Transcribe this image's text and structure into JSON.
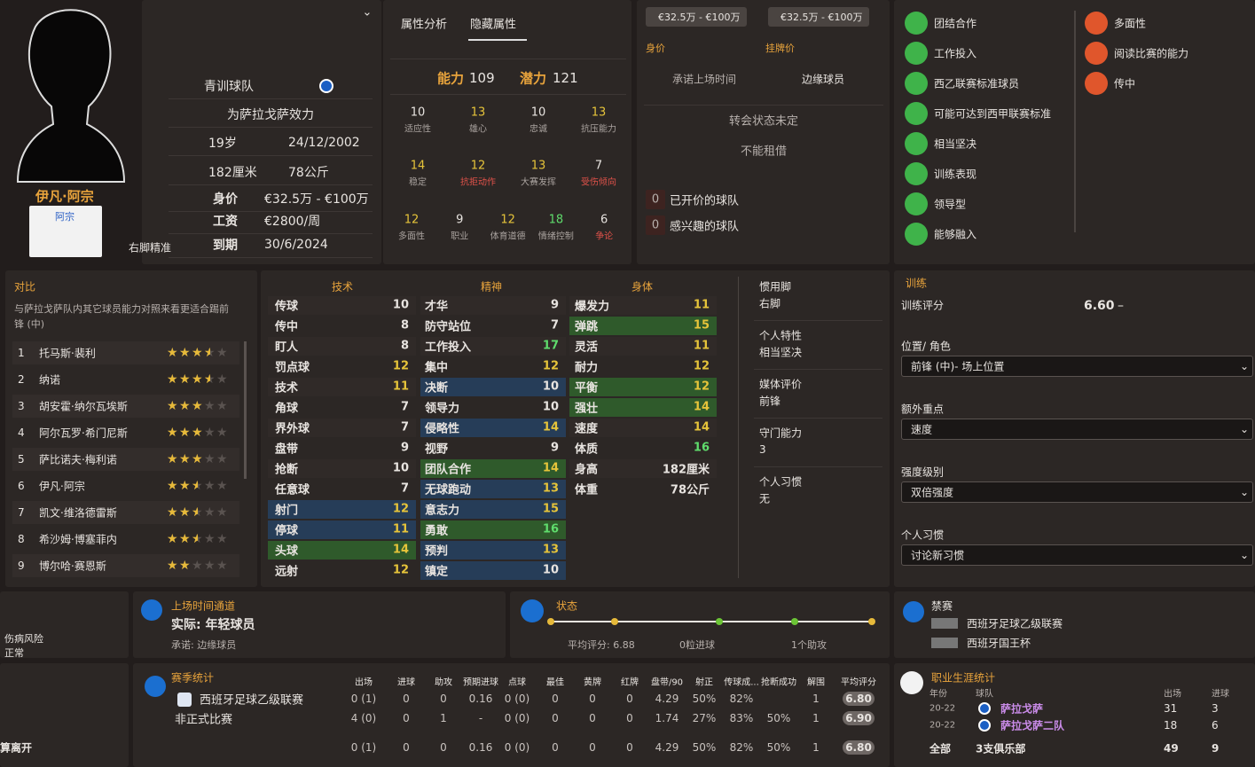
{
  "profile": {
    "name": "伊凡·阿宗",
    "shirt_name": "阿宗",
    "preferred_foot": "右脚精准",
    "rows": [
      [
        "青训球队"
      ],
      [
        "为萨拉戈萨效力"
      ],
      [
        "19岁",
        "24/12/2002"
      ],
      [
        "182厘米",
        "78公斤"
      ],
      [
        "身价",
        "€32.5万 - €100万"
      ],
      [
        "工资",
        "€2800/周"
      ],
      [
        "到期",
        "30/6/2024"
      ]
    ]
  },
  "hidden": {
    "tabs": [
      "属性分析",
      "隐藏属性"
    ],
    "ability": {
      "label": "能力",
      "value": 109
    },
    "potential": {
      "label": "潜力",
      "value": 121
    },
    "attributes": [
      {
        "label": "适应性",
        "value": 10
      },
      {
        "label": "雄心",
        "value": 13
      },
      {
        "label": "忠诚",
        "value": 10
      },
      {
        "label": "抗压能力",
        "value": 13
      },
      {
        "label": "稳定",
        "value": 14
      },
      {
        "label": "抗拒动作",
        "value": 12,
        "color": "#e0524a"
      },
      {
        "label": "大赛发挥",
        "value": 13
      },
      {
        "label": "受伤倾向",
        "value": 7,
        "color": "#e0524a"
      },
      {
        "label": "多面性",
        "value": 12
      },
      {
        "label": "职业",
        "value": 9
      },
      {
        "label": "体育道德",
        "value": 12
      },
      {
        "label": "情绪控制",
        "value": 18
      },
      {
        "label": "争论",
        "value": 6,
        "color": "#e0524a"
      }
    ]
  },
  "transfer": {
    "chips": [
      "€32.5万 - €100万",
      "€32.5万 - €100万"
    ],
    "value_label": "身价",
    "asking_label": "挂牌价",
    "playing_time_label": "承诺上场时间",
    "playing_time": "边缘球员",
    "status": "转会状态未定",
    "loan": "不能租借",
    "offers": {
      "count": 0,
      "label": "已开价的球队"
    },
    "interested": {
      "count": 0,
      "label": "感兴趣的球队"
    }
  },
  "traits": {
    "items": [
      {
        "label": "团结合作",
        "color": "#3fb34a"
      },
      {
        "label": "工作投入",
        "color": "#3fb34a"
      },
      {
        "label": "西乙联赛标准球员",
        "color": "#3fb34a"
      },
      {
        "label": "可能可达到西甲联赛标准",
        "color": "#3fb34a"
      },
      {
        "label": "相当坚决",
        "color": "#3fb34a"
      },
      {
        "label": "训练表现",
        "color": "#3fb34a"
      },
      {
        "label": "领导型",
        "color": "#3fb34a"
      },
      {
        "label": "能够融入",
        "color": "#3fb34a"
      },
      {
        "label": "多面性",
        "color": "#e0562c"
      },
      {
        "label": "阅读比赛的能力",
        "color": "#e0562c"
      },
      {
        "label": "传中",
        "color": "#e0562c"
      }
    ]
  },
  "comparison": {
    "title": "对比",
    "description": "与萨拉戈萨队内其它球员能力对照来看更适合踢前锋 (中)",
    "players": [
      {
        "rank": 1,
        "name": "托马斯·裴利",
        "rating": 3.5
      },
      {
        "rank": 2,
        "name": "纳诺",
        "rating": 3.5
      },
      {
        "rank": 3,
        "name": "胡安霍·纳尔瓦埃斯",
        "rating": 3
      },
      {
        "rank": 4,
        "name": "阿尔瓦罗·希门尼斯",
        "rating": 3
      },
      {
        "rank": 5,
        "name": "萨比诺夫·梅利诺",
        "rating": 3
      },
      {
        "rank": 6,
        "name": "伊凡·阿宗",
        "rating": 2.5
      },
      {
        "rank": 7,
        "name": "凯文·维洛德雷斯",
        "rating": 2.5
      },
      {
        "rank": 8,
        "name": "希沙姆·博塞菲内",
        "rating": 2.5
      },
      {
        "rank": 9,
        "name": "博尔哈·赛恩斯",
        "rating": 2
      }
    ]
  },
  "attributes": {
    "groups": [
      {
        "title": "技术",
        "items": [
          {
            "label": "传球",
            "value": 10
          },
          {
            "label": "传中",
            "value": 8
          },
          {
            "label": "盯人",
            "value": 8
          },
          {
            "label": "罚点球",
            "value": 12
          },
          {
            "label": "技术",
            "value": 11
          },
          {
            "label": "角球",
            "value": 7
          },
          {
            "label": "界外球",
            "value": 7
          },
          {
            "label": "盘带",
            "value": 9
          },
          {
            "label": "抢断",
            "value": 10
          },
          {
            "label": "任意球",
            "value": 7
          },
          {
            "label": "射门",
            "value": 12,
            "highlight": "#263d58"
          },
          {
            "label": "停球",
            "value": 11,
            "highlight": "#263d58"
          },
          {
            "label": "头球",
            "value": 14,
            "highlight": "#2f5a2b"
          },
          {
            "label": "远射",
            "value": 12
          }
        ]
      },
      {
        "title": "精神",
        "items": [
          {
            "label": "才华",
            "value": 9
          },
          {
            "label": "防守站位",
            "value": 7
          },
          {
            "label": "工作投入",
            "value": 17
          },
          {
            "label": "集中",
            "value": 12
          },
          {
            "label": "决断",
            "value": 10,
            "highlight": "#263d58"
          },
          {
            "label": "领导力",
            "value": 10
          },
          {
            "label": "侵略性",
            "value": 14,
            "highlight": "#263d58"
          },
          {
            "label": "视野",
            "value": 9
          },
          {
            "label": "团队合作",
            "value": 14,
            "highlight": "#2f5a2b"
          },
          {
            "label": "无球跑动",
            "value": 13,
            "highlight": "#263d58"
          },
          {
            "label": "意志力",
            "value": 15,
            "highlight": "#263d58"
          },
          {
            "label": "勇敢",
            "value": 16,
            "highlight": "#2f5a2b"
          },
          {
            "label": "预判",
            "value": 13,
            "highlight": "#263d58"
          },
          {
            "label": "镇定",
            "value": 10,
            "highlight": "#263d58"
          }
        ]
      },
      {
        "title": "身体",
        "items": [
          {
            "label": "爆发力",
            "value": 11
          },
          {
            "label": "弹跳",
            "value": 15,
            "highlight": "#2f5a2b"
          },
          {
            "label": "灵活",
            "value": 11
          },
          {
            "label": "耐力",
            "value": 12
          },
          {
            "label": "平衡",
            "value": 12,
            "highlight": "#2f5a2b"
          },
          {
            "label": "强壮",
            "value": 14,
            "highlight": "#2f5a2b"
          },
          {
            "label": "速度",
            "value": 14
          },
          {
            "label": "体质",
            "value": 16
          },
          {
            "label": "身高",
            "value": "182厘米"
          },
          {
            "label": "体重",
            "value": "78公斤"
          }
        ]
      }
    ],
    "side": [
      {
        "label": "惯用脚",
        "value": "右脚"
      },
      {
        "label": "个人特性",
        "value": "相当坚决"
      },
      {
        "label": "媒体评价",
        "value": "前锋"
      },
      {
        "label": "守门能力",
        "value": 3
      },
      {
        "label": "个人习惯",
        "value": "无"
      }
    ]
  },
  "training": {
    "title": "训练",
    "rating_label": "训练评分",
    "rating": "6.60",
    "rating_trend": "–",
    "dropdowns": [
      {
        "label": "位置/ 角色",
        "value": "前锋 (中)- 场上位置"
      },
      {
        "label": "额外重点",
        "value": "速度"
      },
      {
        "label": "强度级别",
        "value": "双倍强度"
      },
      {
        "label": "个人习惯",
        "value": "讨论新习惯"
      }
    ]
  },
  "injury": {
    "label": "伤病风险",
    "value": "正常"
  },
  "playing_time": {
    "title": "上场时间通道",
    "actual": "实际: 年轻球员",
    "promised": "承诺: 边缘球员"
  },
  "form": {
    "title": "状态",
    "avg_rating": "平均评分: 6.88",
    "goals": "0粒进球",
    "assists": "1个助攻"
  },
  "bans": {
    "title": "禁赛",
    "competitions": [
      "西班牙足球乙级联赛",
      "西班牙国王杯"
    ]
  },
  "season_stats": {
    "title": "赛季统计",
    "headers": [
      "出场",
      "进球",
      "助攻",
      "预期进球",
      "点球",
      "最佳",
      "黄牌",
      "红牌",
      "盘带/90",
      "射正",
      "传球成...",
      "抢断成功",
      "解围",
      "平均评分"
    ],
    "rows": [
      {
        "competition": "西班牙足球乙级联赛",
        "cells": [
          "0 (1)",
          "0",
          "0",
          "0.16",
          "0 (0)",
          "0",
          "0",
          "0",
          "4.29",
          "50%",
          "82%",
          null,
          "1",
          "6.80"
        ]
      },
      {
        "competition": "非正式比赛",
        "cells": [
          "4 (0)",
          "0",
          "1",
          "-",
          "0 (0)",
          "0",
          "0",
          "0",
          "1.74",
          "27%",
          "83%",
          "50%",
          "1",
          "6.90"
        ]
      },
      {
        "competition": null,
        "cells": [
          "0 (1)",
          "0",
          "0",
          "0.16",
          "0 (0)",
          "0",
          "0",
          "0",
          "4.29",
          "50%",
          "82%",
          "50%",
          "1",
          "6.80"
        ]
      }
    ]
  },
  "leaving": "算离开",
  "career": {
    "title": "职业生涯统计",
    "headers": [
      "年份",
      "球队",
      "出场",
      "进球"
    ],
    "rows": [
      [
        "20-22",
        "萨拉戈萨",
        31,
        3
      ],
      [
        "20-22",
        "萨拉戈萨二队",
        18,
        6
      ]
    ],
    "total": {
      "label": "全部",
      "clubs": "3支俱乐部",
      "apps": 49,
      "goals": 9
    }
  }
}
